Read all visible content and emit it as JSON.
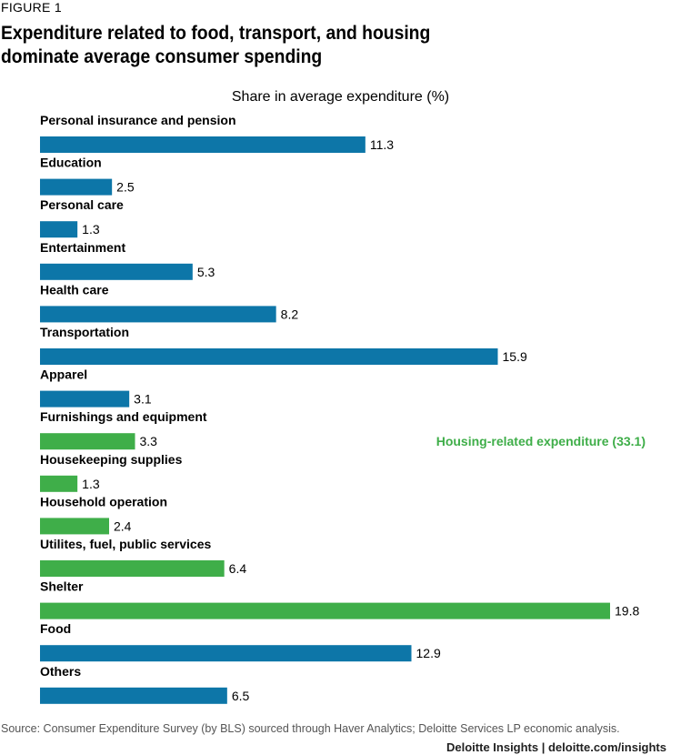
{
  "figure_label": "FIGURE 1",
  "title": "Expenditure related to food, transport, and housing dominate average consumer spending",
  "footer": "Deloitte Insights | deloitte.com/insights",
  "chart_data": {
    "type": "bar",
    "orientation": "horizontal",
    "subtitle": "Share in average expenditure (%)",
    "categories": [
      "Personal insurance and pension",
      "Education",
      "Personal care",
      "Entertainment",
      "Health care",
      "Transportation",
      "Apparel",
      "Furnishings and equipment",
      "Housekeeping supplies",
      "Household operation",
      "Utilites, fuel, public services",
      "Shelter",
      "Food",
      "Others"
    ],
    "values": [
      11.3,
      2.5,
      1.3,
      5.3,
      8.2,
      15.9,
      3.1,
      3.3,
      1.3,
      2.4,
      6.4,
      19.8,
      12.9,
      6.5
    ],
    "value_labels": [
      "11.3",
      "2.5",
      "1.3",
      "5.3",
      "8.2",
      "15.9",
      "3.1",
      "3.3",
      "1.3",
      "2.4",
      "6.4",
      "19.8",
      "12.9",
      "6.5"
    ],
    "groups": [
      "other",
      "other",
      "other",
      "other",
      "other",
      "other",
      "other",
      "housing",
      "housing",
      "housing",
      "housing",
      "housing",
      "other",
      "other"
    ],
    "colors": {
      "other": "#0d76a8",
      "housing": "#3fae49"
    },
    "xlim": [
      0,
      19.8
    ],
    "grid": false,
    "legend": "none",
    "annotation": {
      "text": "Housing-related expenditure (33.1)",
      "color": "#3fae49",
      "group": "housing"
    },
    "source": "Source: Consumer Expenditure Survey (by BLS) sourced through Haver Analytics; Deloitte Services LP economic analysis."
  }
}
